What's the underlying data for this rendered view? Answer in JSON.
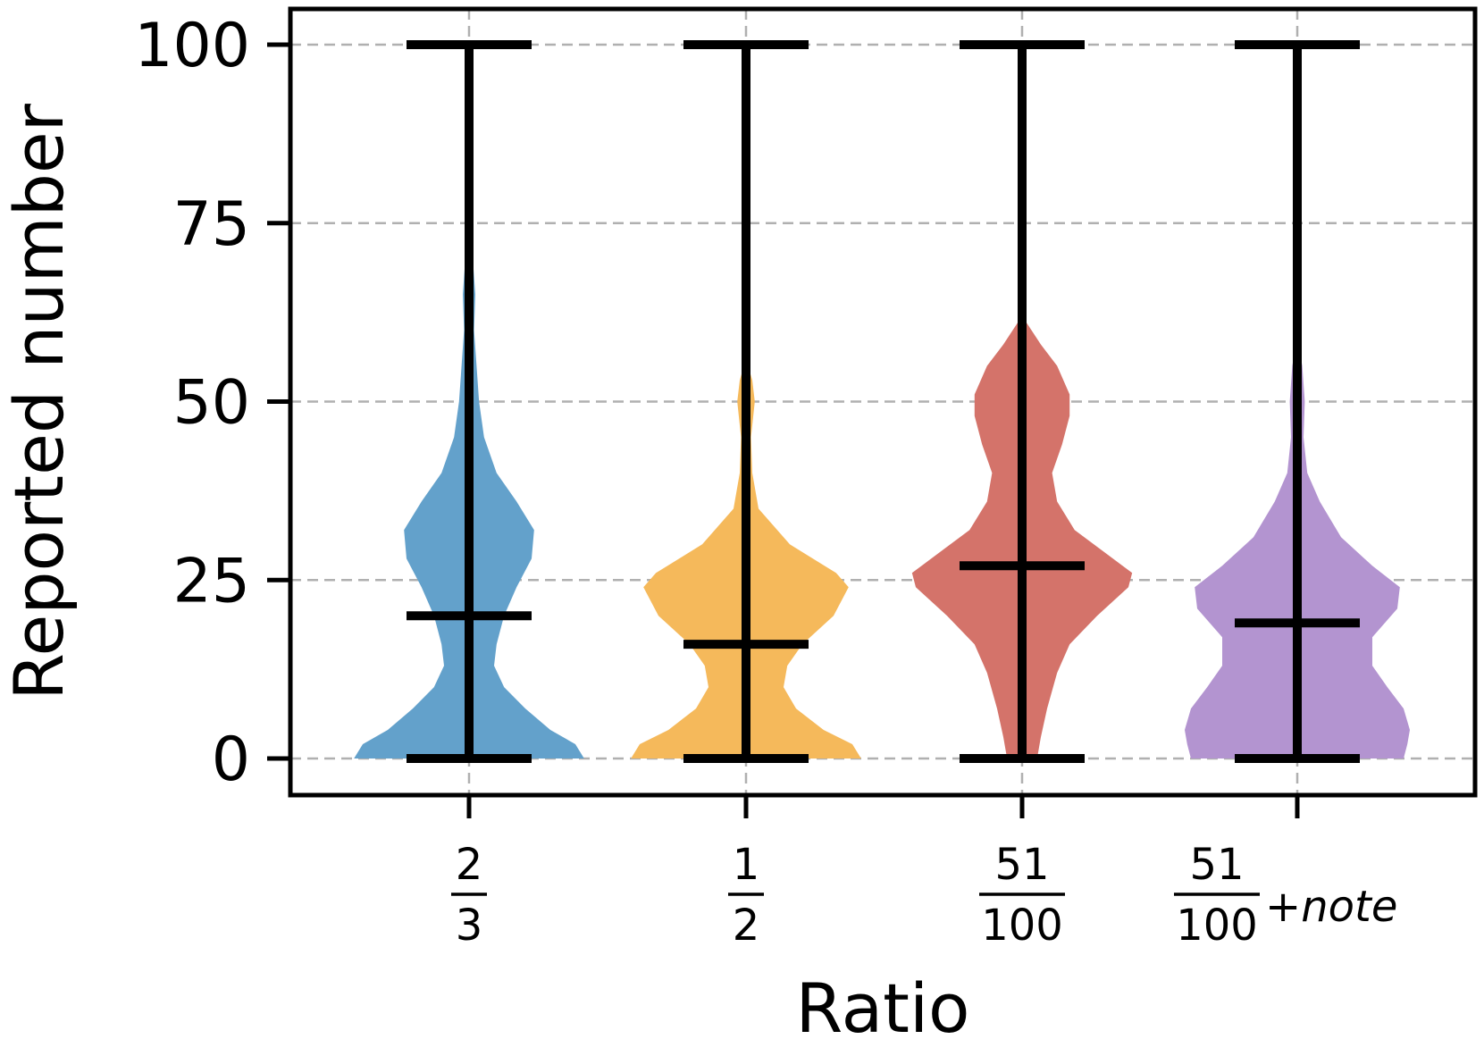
{
  "chart_data": {
    "type": "violin",
    "title": "",
    "xlabel": "Ratio",
    "ylabel": "Reported number",
    "ylim": [
      -5,
      105
    ],
    "yticks": [
      0,
      25,
      50,
      75,
      100
    ],
    "ytick_labels": [
      "0",
      "25",
      "50",
      "75",
      "100"
    ],
    "grid": true,
    "categories": [
      {
        "num": "2",
        "den": "3",
        "suffix": ""
      },
      {
        "num": "1",
        "den": "2",
        "suffix": ""
      },
      {
        "num": "51",
        "den": "100",
        "suffix": ""
      },
      {
        "num": "51",
        "den": "100",
        "suffix": "+note"
      }
    ],
    "series": [
      {
        "name": "2/3",
        "color": "#63a1cb",
        "min": 0,
        "max": 100,
        "median": 20,
        "density": [
          [
            0,
            0.92
          ],
          [
            2,
            0.85
          ],
          [
            4,
            0.65
          ],
          [
            7,
            0.45
          ],
          [
            10,
            0.28
          ],
          [
            13,
            0.2
          ],
          [
            16,
            0.22
          ],
          [
            20,
            0.28
          ],
          [
            24,
            0.38
          ],
          [
            28,
            0.5
          ],
          [
            32,
            0.52
          ],
          [
            36,
            0.38
          ],
          [
            40,
            0.22
          ],
          [
            45,
            0.12
          ],
          [
            50,
            0.08
          ],
          [
            55,
            0.06
          ],
          [
            60,
            0.04
          ],
          [
            65,
            0.05
          ],
          [
            70,
            0.03
          ],
          [
            75,
            0
          ]
        ]
      },
      {
        "name": "1/2",
        "color": "#f5b95b",
        "min": 0,
        "max": 100,
        "median": 16,
        "density": [
          [
            0,
            0.92
          ],
          [
            2,
            0.85
          ],
          [
            4,
            0.62
          ],
          [
            7,
            0.4
          ],
          [
            10,
            0.3
          ],
          [
            13,
            0.33
          ],
          [
            16,
            0.45
          ],
          [
            20,
            0.7
          ],
          [
            24,
            0.82
          ],
          [
            26,
            0.72
          ],
          [
            30,
            0.35
          ],
          [
            35,
            0.1
          ],
          [
            40,
            0.05
          ],
          [
            45,
            0.04
          ],
          [
            50,
            0.07
          ],
          [
            53,
            0.05
          ],
          [
            56,
            0
          ]
        ]
      },
      {
        "name": "51/100",
        "color": "#d4736a",
        "min": 0,
        "max": 100,
        "median": 27,
        "density": [
          [
            0,
            0.12
          ],
          [
            3,
            0.15
          ],
          [
            7,
            0.2
          ],
          [
            12,
            0.28
          ],
          [
            16,
            0.38
          ],
          [
            20,
            0.6
          ],
          [
            24,
            0.85
          ],
          [
            26,
            0.88
          ],
          [
            29,
            0.65
          ],
          [
            32,
            0.42
          ],
          [
            36,
            0.28
          ],
          [
            40,
            0.24
          ],
          [
            44,
            0.32
          ],
          [
            48,
            0.38
          ],
          [
            51,
            0.38
          ],
          [
            55,
            0.28
          ],
          [
            58,
            0.15
          ],
          [
            62,
            0
          ]
        ]
      },
      {
        "name": "51/100+note",
        "color": "#b394d0",
        "min": 0,
        "max": 100,
        "median": 19,
        "density": [
          [
            0,
            0.85
          ],
          [
            2,
            0.88
          ],
          [
            4,
            0.9
          ],
          [
            7,
            0.85
          ],
          [
            10,
            0.72
          ],
          [
            13,
            0.6
          ],
          [
            17,
            0.6
          ],
          [
            21,
            0.8
          ],
          [
            24,
            0.82
          ],
          [
            27,
            0.6
          ],
          [
            31,
            0.35
          ],
          [
            36,
            0.18
          ],
          [
            40,
            0.08
          ],
          [
            45,
            0.05
          ],
          [
            50,
            0.06
          ],
          [
            55,
            0.04
          ],
          [
            59,
            0
          ]
        ]
      }
    ]
  }
}
